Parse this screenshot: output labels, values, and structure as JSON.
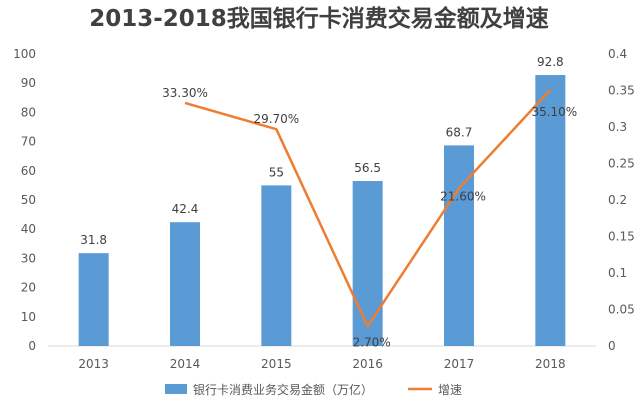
{
  "chart_data": {
    "type": "bar",
    "title": "2013-2018我国银行卡消费交易金额及增速",
    "categories": [
      "2013",
      "2014",
      "2015",
      "2016",
      "2017",
      "2018"
    ],
    "series": [
      {
        "name": "银行卡消费业务交易金额（万亿）",
        "type": "bar",
        "axis": "left",
        "color": "#5B9BD5",
        "values": [
          31.8,
          42.4,
          55,
          56.5,
          68.7,
          92.8
        ],
        "labels": [
          "31.8",
          "42.4",
          "55",
          "56.5",
          "68.7",
          "92.8"
        ]
      },
      {
        "name": "增速",
        "type": "line",
        "axis": "right",
        "color": "#ED7D31",
        "values": [
          null,
          0.333,
          0.297,
          0.027,
          0.216,
          0.351
        ],
        "labels": [
          "",
          "33.30%",
          "29.70%",
          "2.70%",
          "21.60%",
          "35.10%"
        ]
      }
    ],
    "y_left": {
      "ylim": [
        0,
        100
      ],
      "ticks": [
        "0",
        "10",
        "20",
        "30",
        "40",
        "50",
        "60",
        "70",
        "80",
        "90",
        "100"
      ]
    },
    "y_right": {
      "ylim": [
        0,
        0.4
      ],
      "ticks": [
        "0",
        "0.05",
        "0.1",
        "0.15",
        "0.2",
        "0.25",
        "0.3",
        "0.35",
        "0.4"
      ]
    },
    "grid": false,
    "legend": "bottom-center"
  }
}
